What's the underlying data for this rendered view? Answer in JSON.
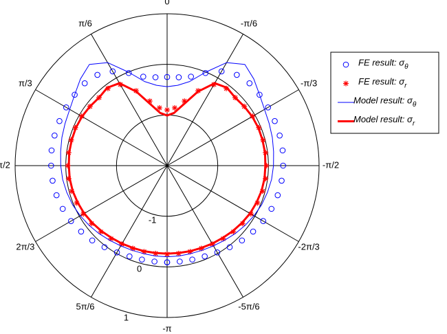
{
  "chart_data": {
    "type": "polar",
    "x": [
      -3.1416,
      -3.0107,
      -2.8798,
      -2.7489,
      -2.618,
      -2.4871,
      -2.3562,
      -2.2253,
      -2.0944,
      -1.9635,
      -1.8326,
      -1.7017,
      -1.5708,
      -1.4399,
      -1.309,
      -1.1781,
      -1.0472,
      -0.9163,
      -0.7854,
      -0.6545,
      -0.5236,
      -0.3927,
      -0.2618,
      -0.1309,
      0,
      0.1309,
      0.2618,
      0.3927,
      0.5236,
      0.6545,
      0.7854,
      0.9163,
      1.0472,
      1.1781,
      1.309,
      1.4399,
      1.5708,
      1.7017,
      1.8326,
      1.9635,
      2.0944,
      2.2253,
      2.3562,
      2.4871,
      2.618,
      2.7489,
      2.8798,
      3.0107,
      3.1416
    ],
    "series": [
      {
        "name": "FE result: σθ",
        "color": "#0000ff",
        "marker": "circle",
        "values": [
          -0.09,
          -0.09,
          -0.08,
          -0.06,
          -0.02,
          0.03,
          0.09,
          0.14,
          0.19,
          0.23,
          0.26,
          0.28,
          0.29,
          0.3,
          0.3,
          0.3,
          0.3,
          0.3,
          0.3,
          0.26,
          0.15,
          -0.02,
          -0.18,
          -0.24,
          -0.25,
          -0.24,
          -0.18,
          -0.02,
          0.15,
          0.26,
          0.3,
          0.3,
          0.3,
          0.3,
          0.3,
          0.3,
          0.29,
          0.28,
          0.26,
          0.23,
          0.19,
          0.14,
          0.09,
          0.03,
          -0.02,
          -0.06,
          -0.08,
          -0.09,
          -0.09
        ]
      },
      {
        "name": "FE result: σr",
        "color": "#ff0000",
        "marker": "star",
        "values": [
          -0.25,
          -0.25,
          -0.24,
          -0.23,
          -0.21,
          -0.18,
          -0.15,
          -0.12,
          -0.09,
          -0.07,
          -0.05,
          -0.04,
          -0.04,
          -0.04,
          -0.04,
          -0.04,
          -0.05,
          -0.08,
          -0.1,
          -0.08,
          -0.15,
          -0.4,
          -0.68,
          -0.85,
          -0.9,
          -0.85,
          -0.68,
          -0.4,
          -0.15,
          -0.08,
          -0.1,
          -0.08,
          -0.05,
          -0.04,
          -0.04,
          -0.04,
          -0.04,
          -0.04,
          -0.05,
          -0.07,
          -0.09,
          -0.12,
          -0.15,
          -0.18,
          -0.21,
          -0.23,
          -0.24,
          -0.25,
          -0.25
        ]
      },
      {
        "name": "Model result: σθ",
        "color": "#0000ff",
        "linewidth": 1,
        "values": [
          -0.2,
          -0.2,
          -0.2,
          -0.19,
          -0.17,
          -0.14,
          -0.1,
          -0.06,
          -0.02,
          0.02,
          0.05,
          0.08,
          0.1,
          0.12,
          0.15,
          0.18,
          0.22,
          0.3,
          0.42,
          0.52,
          0.35,
          0.0,
          -0.28,
          -0.4,
          -0.44,
          -0.4,
          -0.28,
          0.0,
          0.35,
          0.52,
          0.42,
          0.3,
          0.22,
          0.18,
          0.15,
          0.12,
          0.1,
          0.08,
          0.05,
          0.02,
          -0.02,
          -0.06,
          -0.1,
          -0.14,
          -0.17,
          -0.19,
          -0.2,
          -0.2,
          -0.2
        ]
      },
      {
        "name": "Model result: σr",
        "color": "#ff0000",
        "linewidth": 3,
        "values": [
          -0.26,
          -0.26,
          -0.25,
          -0.24,
          -0.22,
          -0.2,
          -0.17,
          -0.14,
          -0.11,
          -0.09,
          -0.07,
          -0.06,
          -0.06,
          -0.05,
          -0.05,
          -0.05,
          -0.06,
          -0.08,
          -0.1,
          -0.06,
          -0.12,
          -0.42,
          -0.75,
          -0.95,
          -1.01,
          -0.95,
          -0.75,
          -0.42,
          -0.12,
          -0.06,
          -0.1,
          -0.08,
          -0.06,
          -0.05,
          -0.05,
          -0.05,
          -0.06,
          -0.06,
          -0.07,
          -0.09,
          -0.11,
          -0.14,
          -0.17,
          -0.2,
          -0.22,
          -0.24,
          -0.25,
          -0.26,
          -0.26
        ]
      }
    ],
    "rlim": [
      -2,
      1
    ],
    "rticks": [
      -1,
      0,
      1
    ],
    "xticks": [
      0,
      {
        "value": 0.5236,
        "label": "π/6"
      },
      {
        "value": 1.0472,
        "label": "π/3"
      },
      {
        "value": 1.5708,
        "label": "π/2"
      },
      {
        "value": 2.0944,
        "label": "2π/3"
      },
      {
        "value": 2.618,
        "label": "5π/6"
      },
      {
        "value": -3.1416,
        "label": "-π"
      },
      {
        "value": -2.618,
        "label": "-5π/6"
      },
      {
        "value": -2.0944,
        "label": "-2π/3"
      },
      {
        "value": -1.5708,
        "label": "-π/2"
      },
      {
        "value": -1.0472,
        "label": "-π/3"
      },
      {
        "value": -0.5236,
        "label": "-π/6"
      }
    ],
    "legend": "right"
  }
}
